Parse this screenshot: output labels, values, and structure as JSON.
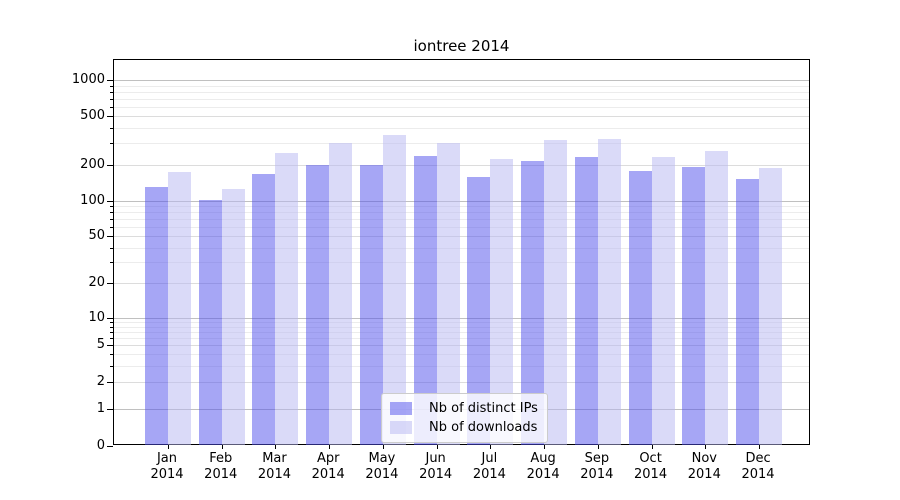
{
  "chart_data": {
    "type": "bar",
    "title": "iontree 2014",
    "categories": [
      "Jan",
      "Feb",
      "Mar",
      "Apr",
      "May",
      "Jun",
      "Jul",
      "Aug",
      "Sep",
      "Oct",
      "Nov",
      "Dec"
    ],
    "x_sublabel": "2014",
    "series": [
      {
        "name": "Nb of distinct IPs",
        "color": "rgba(77,77,235,0.5)",
        "values": [
          130,
          102,
          166,
          200,
          199,
          236,
          159,
          215,
          232,
          177,
          191,
          151
        ]
      },
      {
        "name": "Nb of downloads",
        "color": "rgba(181,181,241,0.5)",
        "values": [
          175,
          126,
          250,
          303,
          351,
          303,
          224,
          317,
          324,
          231,
          259,
          188
        ]
      }
    ],
    "yscale": "symlog",
    "y_ticks": [
      0,
      1,
      2,
      5,
      10,
      20,
      50,
      100,
      200,
      500,
      1000
    ],
    "ylim": [
      0,
      1465
    ],
    "grid": "both",
    "legend_position": "lower center",
    "colors": {
      "decade_grid": "#c0c0c0",
      "mid_grid": "#dcdcdc",
      "minor_grid": "#ececec",
      "spine": "#000000",
      "text": "#000000",
      "legend_border": "#cccccc",
      "legend_bg": "rgba(255,255,255,0.8)"
    }
  }
}
